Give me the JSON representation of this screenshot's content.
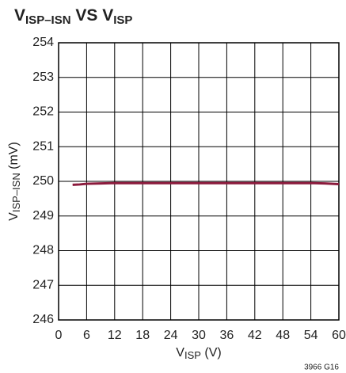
{
  "chart_data": {
    "type": "line",
    "title": [
      "V",
      "ISP–ISN",
      " VS ",
      "V",
      "ISP"
    ],
    "xlabel": [
      "V",
      "ISP",
      " (V)"
    ],
    "ylabel": [
      "V",
      "ISP–ISN",
      " (mV)"
    ],
    "note": "3966 G16",
    "series": [
      {
        "color": "#8b1a3c",
        "x": [
          3,
          4.5,
          6,
          9,
          12,
          18,
          24,
          30,
          36,
          42,
          48,
          54,
          57,
          60
        ],
        "values": [
          249.9,
          249.91,
          249.93,
          249.94,
          249.95,
          249.95,
          249.95,
          249.95,
          249.95,
          249.95,
          249.95,
          249.95,
          249.94,
          249.92
        ]
      }
    ],
    "xlim": [
      0,
      60
    ],
    "xticks": [
      0,
      6,
      12,
      18,
      24,
      30,
      36,
      42,
      48,
      54,
      60
    ],
    "ylim": [
      246,
      254
    ],
    "yticks": [
      246,
      247,
      248,
      249,
      250,
      251,
      252,
      253,
      254
    ],
    "grid": true
  }
}
